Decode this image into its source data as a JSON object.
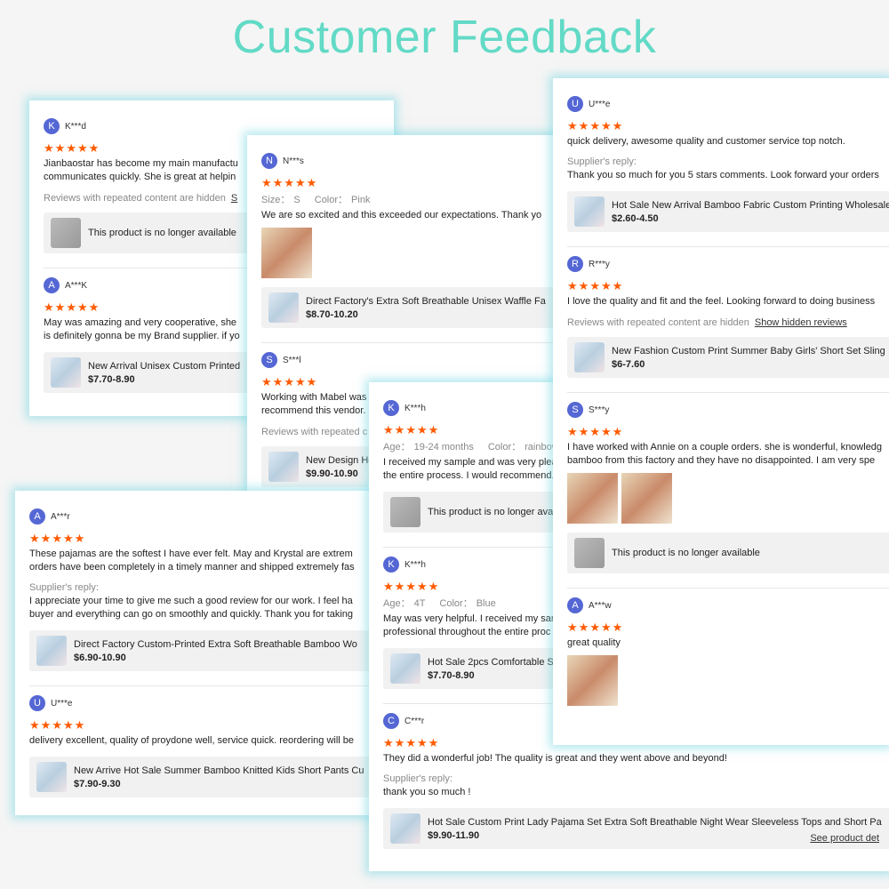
{
  "title": "Customer Feedback",
  "cards": [
    {
      "reviews": [
        {
          "initial": "K",
          "name": "K***d",
          "rating": 5,
          "text": [
            "Jianbaostar has become my main manufactu",
            "communicates quickly. She is great at helpin"
          ],
          "hidden": "Reviews with repeated content are hidden",
          "link": "S",
          "product": {
            "note": "This product is no longer available"
          }
        },
        {
          "initial": "A",
          "name": "A***K",
          "rating": 5,
          "text": [
            "May was amazing and very cooperative, she",
            "is definitely gonna be my Brand supplier. if yo"
          ],
          "product": {
            "title": "New Arrival Unisex Custom Printed",
            "price": "$7.70-8.90"
          }
        }
      ]
    },
    {
      "reviews": [
        {
          "initial": "N",
          "name": "N***s",
          "rating": 5,
          "attrs": [
            {
              "label": "Size：",
              "value": "S"
            },
            {
              "label": "Color：",
              "value": "Pink"
            }
          ],
          "text": [
            "We are so excited and this exceeded our expectations. Thank yo"
          ],
          "product": {
            "title": "Direct Factory's Extra Soft Breathable Unisex Waffle Fa",
            "price": "$8.70-10.20"
          }
        },
        {
          "initial": "S",
          "name": "S***l",
          "rating": 5,
          "text": [
            "Working with Mabel was",
            "recommend this vendor."
          ],
          "hidden": "Reviews with repeated c",
          "product": {
            "title": "New Design Ho",
            "price": "$9.90-10.90"
          }
        }
      ]
    },
    {
      "reviews": [
        {
          "initial": "A",
          "name": "A***r",
          "rating": 5,
          "text": [
            "These pajamas are the softest I have ever felt. May and Krystal are extrem",
            "orders have been completely in a timely manner and shipped extremely fas"
          ],
          "reply_label": "Supplier's reply:",
          "reply": [
            "I appreciate your time to give me such a good review for our work. I feel ha",
            "buyer and everything can go on smoothly and quickly. Thank you for taking"
          ],
          "product": {
            "title": "Direct Factory Custom-Printed Extra Soft Breathable Bamboo Wo",
            "price": "$6.90-10.90"
          }
        },
        {
          "initial": "U",
          "name": "U***e",
          "rating": 5,
          "text": [
            "delivery excellent, quality of proydone well, service quick. reordering will be"
          ],
          "product": {
            "title": "New Arrive Hot Sale Summer Bamboo Knitted Kids Short Pants Cu",
            "price": "$7.90-9.30"
          }
        }
      ]
    },
    {
      "reviews": [
        {
          "initial": "K",
          "name": "K***h",
          "rating": 5,
          "attrs": [
            {
              "label": "Age：",
              "value": "19-24 months"
            },
            {
              "label": "Color：",
              "value": "rainbow"
            }
          ],
          "text": [
            "I received my sample and was very plea",
            "the entire process. I would recommend."
          ],
          "product": {
            "note": "This product is no longer available"
          }
        },
        {
          "initial": "K",
          "name": "K***h",
          "rating": 5,
          "attrs": [
            {
              "label": "Age：",
              "value": "4T"
            },
            {
              "label": "Color：",
              "value": "Blue"
            }
          ],
          "text": [
            "May was very helpful. I received my sar",
            "professional throughout the entire proc"
          ],
          "product": {
            "title": "Hot Sale 2pcs Comfortable Sp",
            "price": "$7.70-8.90"
          }
        },
        {
          "initial": "C",
          "name": "C***r",
          "rating": 5,
          "text": [
            "They did a wonderful job! The quality is great and they went above and beyond!"
          ],
          "reply_label": "Supplier's reply:",
          "reply": [
            "thank you so much !"
          ],
          "product": {
            "title": "Hot Sale Custom Print Lady Pajama Set Extra Soft Breathable Night Wear Sleeveless Tops and Short Pa",
            "price": "$9.90-11.90",
            "link": "See product det"
          }
        }
      ]
    },
    {
      "reviews": [
        {
          "initial": "U",
          "name": "U***e",
          "rating": 5,
          "text": [
            "quick delivery, awesome quality and customer service top notch."
          ],
          "reply_label": "Supplier's reply:",
          "reply": [
            "Thank you so much for you 5 stars comments. Look forward your orders"
          ],
          "product": {
            "title": "Hot Sale New Arrival Bamboo Fabric Custom Printing Wholesale",
            "price": "$2.60-4.50"
          }
        },
        {
          "initial": "R",
          "name": "R***y",
          "rating": 5,
          "text": [
            "I love the quality and fit and the feel. Looking forward to doing business"
          ],
          "hidden": "Reviews with repeated content are hidden",
          "link": "Show hidden reviews",
          "product": {
            "title": "New Fashion Custom Print Summer Baby Girls' Short Set Sling",
            "price": "$6-7.60"
          }
        },
        {
          "initial": "S",
          "name": "S***y",
          "rating": 5,
          "text": [
            "I have worked with Annie on a couple orders. she is wonderful, knowledg",
            "bamboo from this factory and they have no disappointed. I am very spe"
          ],
          "product": {
            "note": "This product is no longer available"
          }
        },
        {
          "initial": "A",
          "name": "A***w",
          "rating": 5,
          "text": [
            "great quality"
          ]
        }
      ]
    }
  ]
}
